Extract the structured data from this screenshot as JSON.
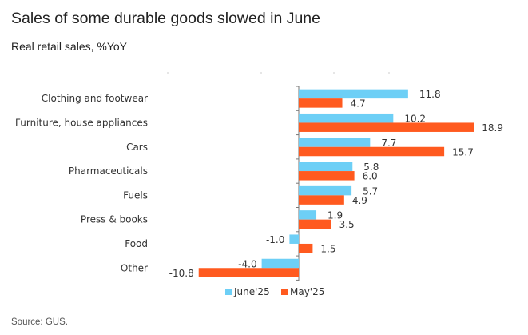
{
  "chart_data": {
    "type": "bar",
    "orientation": "horizontal",
    "title": "Sales of some durable goods slowed in June",
    "subtitle": "Real retail sales, %YoY",
    "source": "Source: GUS.",
    "categories": [
      "Clothing and footwear",
      "Furniture, house appliances",
      "Cars",
      "Pharmaceuticals",
      "Fuels",
      "Press & books",
      "Food",
      "Other"
    ],
    "series": [
      {
        "name": "June'25",
        "color": "#6dcff6",
        "values": [
          11.8,
          10.2,
          7.7,
          5.8,
          5.7,
          1.9,
          -1.0,
          -4.0
        ]
      },
      {
        "name": "May'25",
        "color": "#ff5a1f",
        "values": [
          4.7,
          18.9,
          15.7,
          6.0,
          4.9,
          3.5,
          1.5,
          -10.8
        ]
      }
    ],
    "xlim": [
      -11,
      21
    ],
    "legend": "bottom",
    "grid": false
  }
}
